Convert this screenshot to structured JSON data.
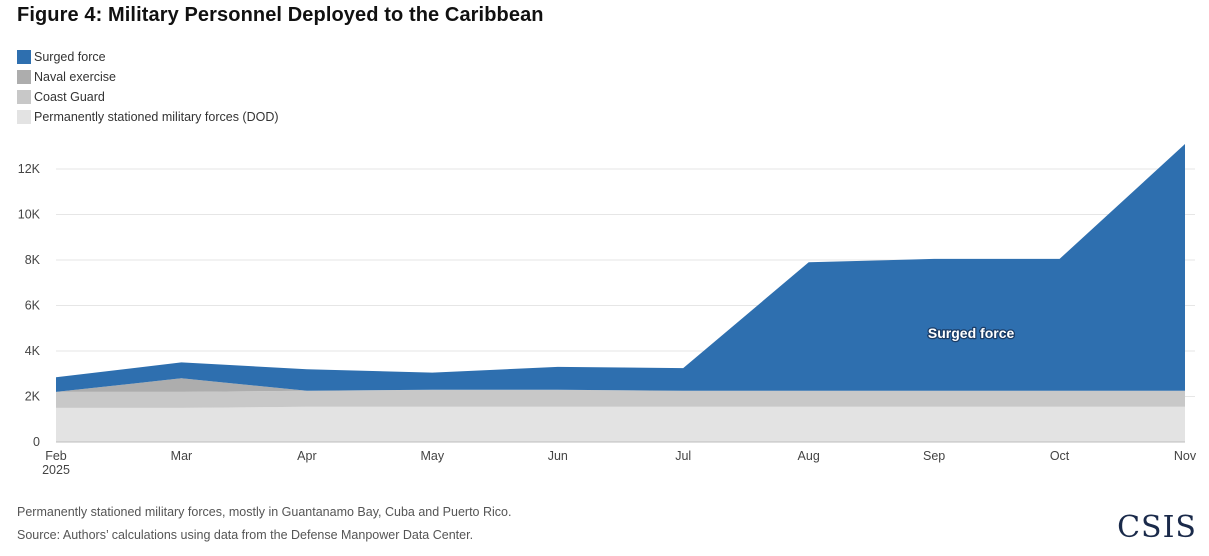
{
  "title": "Figure 4: Military Personnel Deployed to the Caribbean",
  "notes": {
    "footnote": "Permanently stationed military forces, mostly in Guantanamo Bay, Cuba and Puerto Rico.",
    "source": "Source: Authors’ calculations using data from the Defense Manpower Data Center."
  },
  "logo": "CSIS",
  "colors": {
    "surged": "#2e6faf",
    "naval": "#adadad",
    "coast_guard": "#c8c8c8",
    "permanent": "#e3e3e3"
  },
  "chart_data": {
    "type": "area",
    "stacked": true,
    "title": "Figure 4: Military Personnel Deployed to the Caribbean",
    "categories": [
      "Feb 2025",
      "Mar",
      "Apr",
      "May",
      "Jun",
      "Jul",
      "Aug",
      "Sep",
      "Oct",
      "Nov"
    ],
    "x_tick_labels": [
      {
        "line1": "Feb",
        "line2": "2025"
      },
      {
        "line1": "Mar",
        "line2": ""
      },
      {
        "line1": "Apr",
        "line2": ""
      },
      {
        "line1": "May",
        "line2": ""
      },
      {
        "line1": "Jun",
        "line2": ""
      },
      {
        "line1": "Jul",
        "line2": ""
      },
      {
        "line1": "Aug",
        "line2": ""
      },
      {
        "line1": "Sep",
        "line2": ""
      },
      {
        "line1": "Oct",
        "line2": ""
      },
      {
        "line1": "Nov",
        "line2": ""
      }
    ],
    "series": [
      {
        "name": "Permanently stationed military forces (DOD)",
        "key": "permanent",
        "values": [
          1500,
          1500,
          1550,
          1550,
          1550,
          1550,
          1550,
          1550,
          1550,
          1550
        ]
      },
      {
        "name": "Coast Guard",
        "key": "coast_guard",
        "values": [
          700,
          700,
          700,
          750,
          750,
          700,
          700,
          700,
          700,
          700
        ]
      },
      {
        "name": "Naval exercise",
        "key": "naval",
        "values": [
          0,
          600,
          0,
          0,
          0,
          0,
          0,
          0,
          0,
          0
        ]
      },
      {
        "name": "Surged force",
        "key": "surged",
        "values": [
          650,
          700,
          950,
          750,
          1000,
          1000,
          5650,
          5800,
          5800,
          10850
        ]
      }
    ],
    "legend": [
      {
        "label": "Surged force",
        "key": "surged"
      },
      {
        "label": "Naval exercise",
        "key": "naval"
      },
      {
        "label": "Coast Guard",
        "key": "coast_guard"
      },
      {
        "label": "Permanently stationed military forces (DOD)",
        "key": "permanent"
      }
    ],
    "annotation": {
      "text": "Surged force",
      "category_index": 7,
      "y": 4800
    },
    "y_ticks": [
      0,
      2000,
      4000,
      6000,
      8000,
      10000,
      12000
    ],
    "y_tick_labels": [
      "0",
      "2K",
      "4K",
      "6K",
      "8K",
      "10K",
      "12K"
    ],
    "ylim": [
      0,
      13000
    ],
    "grid": true,
    "legend_position": "top-left",
    "xlabel": "",
    "ylabel": ""
  }
}
